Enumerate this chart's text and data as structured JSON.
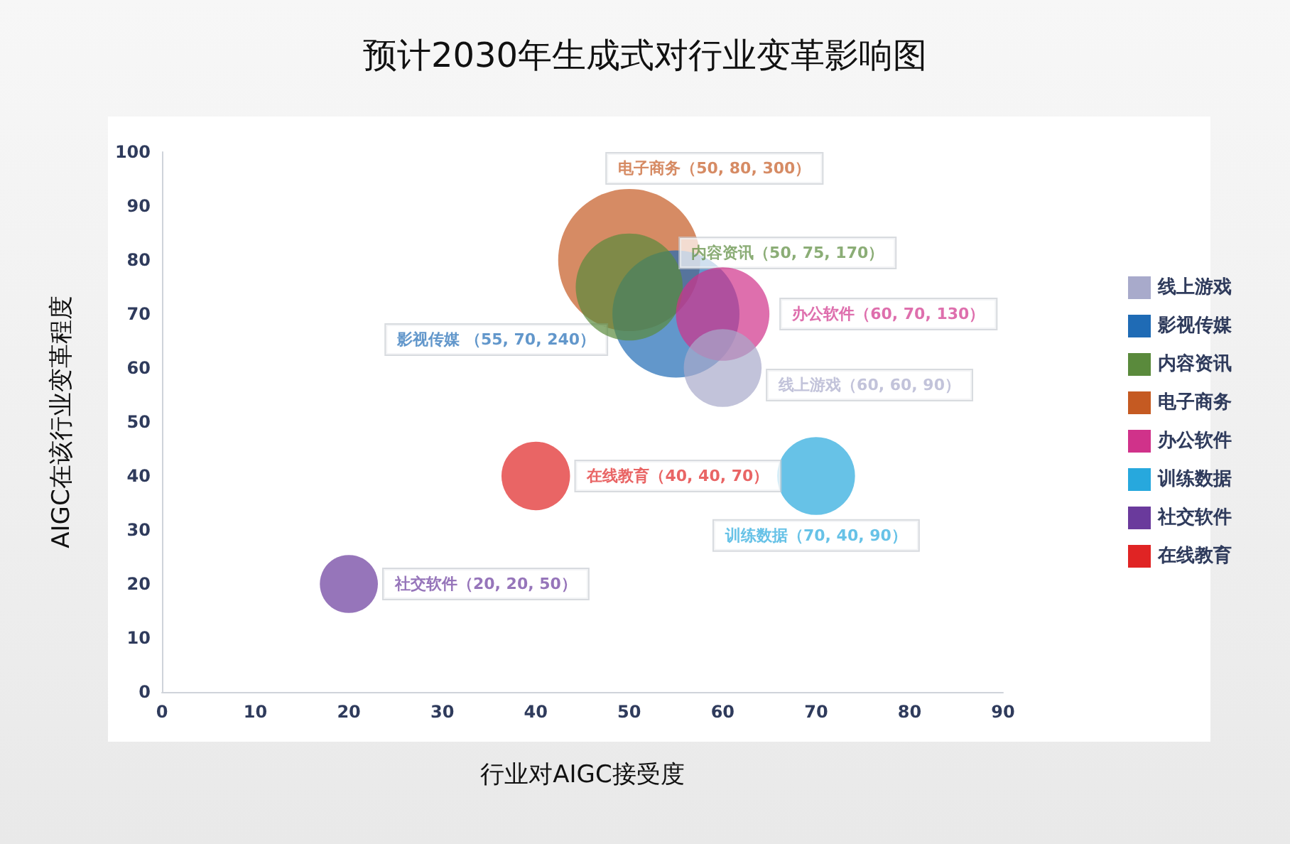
{
  "chart_data": {
    "type": "bubble",
    "title": "预计2030年生成式对行业变革影响图",
    "xlabel": "行业对AIGC接受度",
    "ylabel": "AIGC在该行业变革程度",
    "xlim": [
      0,
      90
    ],
    "xticks": [
      0,
      10,
      20,
      30,
      40,
      50,
      60,
      70,
      80,
      90
    ],
    "ylim": [
      0,
      100
    ],
    "yticks": [
      0,
      10,
      20,
      30,
      40,
      50,
      60,
      70,
      80,
      90,
      100
    ],
    "grid": false,
    "legend": "right",
    "series": [
      {
        "name": "线上游戏",
        "color": "#a8aacb",
        "x": [
          60
        ],
        "values": [
          60
        ],
        "sizes": [
          0.3
        ],
        "value_labels": [
          "线上游戏（60, 60, 90）"
        ]
      },
      {
        "name": "影视传媒",
        "color": "#1f6bb5",
        "x": [
          55
        ],
        "values": [
          70
        ],
        "sizes": [
          0.8
        ],
        "value_labels": [
          "影视传媒 （55, 70, 240）"
        ]
      },
      {
        "name": "内容资讯",
        "color": "#5a8a3c",
        "x": [
          50
        ],
        "values": [
          75
        ],
        "sizes": [
          0.567
        ],
        "value_labels": [
          "内容资讯（50, 75, 170）"
        ]
      },
      {
        "name": "电子商务",
        "color": "#c55a22",
        "x": [
          50
        ],
        "values": [
          80
        ],
        "sizes": [
          1
        ],
        "value_labels": [
          "电子商务（50, 80, 300）"
        ]
      },
      {
        "name": "办公软件",
        "color": "#d0328a",
        "x": [
          60
        ],
        "values": [
          70
        ],
        "sizes": [
          0.433
        ],
        "value_labels": [
          "办公软件（60, 70, 130）"
        ]
      },
      {
        "name": "训练数据",
        "color": "#27a8dd",
        "x": [
          70
        ],
        "values": [
          40
        ],
        "sizes": [
          0.3
        ],
        "value_labels": [
          "训练数据（70, 40, 90）"
        ]
      },
      {
        "name": "社交软件",
        "color": "#6a3a9c",
        "x": [
          20
        ],
        "values": [
          20
        ],
        "sizes": [
          0.167
        ],
        "value_labels": [
          "社交软件（20, 20, 50）"
        ]
      },
      {
        "name": "在线教育",
        "color": "#e02424",
        "x": [
          40
        ],
        "values": [
          40
        ],
        "sizes": [
          0.233
        ],
        "value_labels": [
          "在线教育（40, 40, 70）"
        ]
      }
    ]
  }
}
